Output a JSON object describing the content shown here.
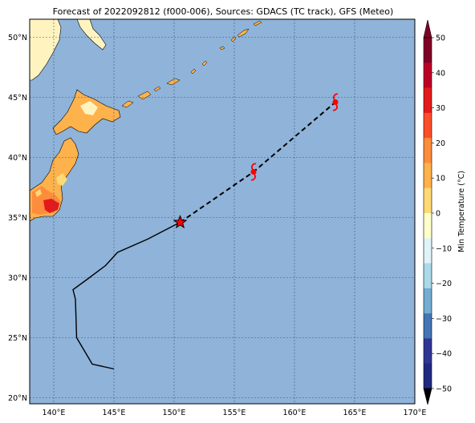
{
  "title": "Forecast of 2022092812 (f000-006), Sources: GDACS (TC track), GFS (Meteo)",
  "map": {
    "lon_range": [
      138,
      170
    ],
    "lat_range": [
      19.5,
      51.5
    ],
    "lon_ticks": [
      140,
      145,
      150,
      155,
      160,
      165,
      170
    ],
    "lat_ticks": [
      20,
      25,
      30,
      35,
      40,
      45,
      50
    ],
    "lon_tick_labels": [
      "140°E",
      "145°E",
      "150°E",
      "155°E",
      "160°E",
      "165°E",
      "170°E"
    ],
    "lat_tick_labels": [
      "20°N",
      "25°N",
      "30°N",
      "35°N",
      "40°N",
      "45°N",
      "50°N"
    ],
    "gridlines": true,
    "ocean_color": "#8fb3d9"
  },
  "colorbar": {
    "label": "Min Temperature (°C)",
    "ticks": [
      50,
      40,
      30,
      20,
      10,
      0,
      -10,
      -20,
      -30,
      -40,
      -50
    ],
    "tick_labels": [
      "50",
      "40",
      "30",
      "20",
      "10",
      "0",
      "−10",
      "−20",
      "−30",
      "−40",
      "−50"
    ],
    "colors_top_to_bottom": [
      "#800026",
      "#bd0026",
      "#e31a1c",
      "#fc4e2a",
      "#fd8d3c",
      "#feb24c",
      "#fed976",
      "#ffffcc",
      "#e0f3f8",
      "#abd9e9",
      "#74add1",
      "#4575b4",
      "#313695",
      "#1f2a80"
    ],
    "extend_top_color": "#800026",
    "extend_bottom_color": "#000000"
  },
  "track": {
    "past": [
      [
        145,
        22.4
      ],
      [
        143.2,
        22.8
      ],
      [
        141.9,
        25.0
      ],
      [
        141.8,
        28.2
      ],
      [
        141.6,
        29
      ],
      [
        142.7,
        29.8
      ],
      [
        144.3,
        31
      ],
      [
        145.3,
        32.1
      ],
      [
        147.8,
        33.2
      ],
      [
        150.5,
        34.6
      ]
    ],
    "forecast": [
      [
        150.5,
        34.6
      ],
      [
        156.6,
        38.8
      ],
      [
        163.4,
        44.6
      ]
    ],
    "current_position": [
      150.5,
      34.6
    ],
    "forecast_positions": [
      [
        156.6,
        38.8
      ],
      [
        163.4,
        44.6
      ]
    ],
    "track_color": "#000000",
    "marker_color": "#ff0000"
  }
}
